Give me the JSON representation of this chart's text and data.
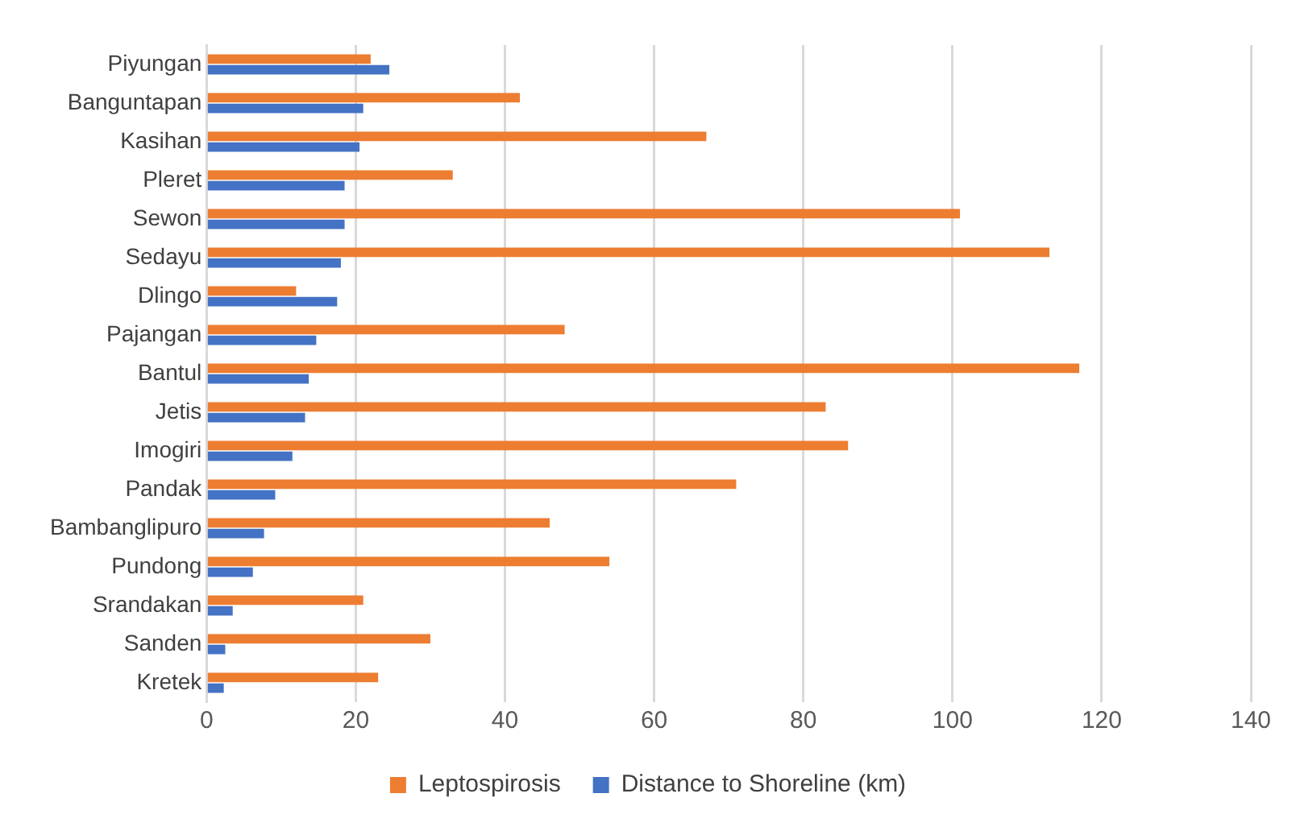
{
  "chart_data": {
    "type": "bar",
    "orientation": "horizontal",
    "categories": [
      "Piyungan",
      "Banguntapan",
      "Kasihan",
      "Pleret",
      "Sewon",
      "Sedayu",
      "Dlingo",
      "Pajangan",
      "Bantul",
      "Jetis",
      "Imogiri",
      "Pandak",
      "Bambanglipuro",
      "Pundong",
      "Srandakan",
      "Sanden",
      "Kretek"
    ],
    "series": [
      {
        "name": "Leptospirosis",
        "color": "#ed7d31",
        "values": [
          22,
          42,
          67,
          33,
          101,
          113,
          12,
          48,
          117,
          83,
          86,
          71,
          46,
          54,
          21,
          30,
          23
        ]
      },
      {
        "name": "Distance to Shoreline (km)",
        "color": "#4472c4",
        "values": [
          24.5,
          21,
          20.5,
          18.5,
          18.5,
          18,
          17.5,
          14.7,
          13.7,
          13.2,
          11.5,
          9.2,
          7.7,
          6.2,
          3.5,
          2.5,
          2.3
        ]
      }
    ],
    "xlim": [
      0,
      140
    ],
    "xticks": [
      0,
      20,
      40,
      60,
      80,
      100,
      120,
      140
    ],
    "grid": "x",
    "legend": "bottom"
  }
}
